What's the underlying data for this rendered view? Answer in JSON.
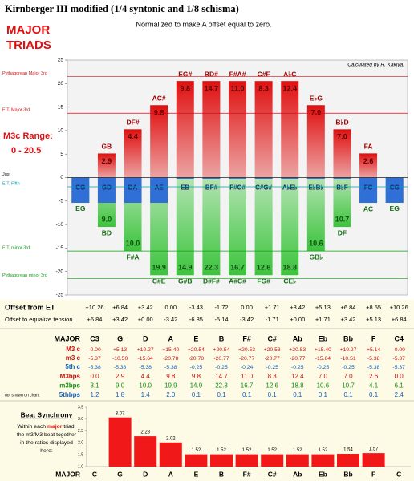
{
  "title": "Kirnberger III modified (1/4 syntonic and 1/8 schisma)",
  "heading_lines": [
    "MAJOR",
    "TRIADS"
  ],
  "note": "Normalized to make A offset equal to zero.",
  "range_label": "M3c Range:",
  "range_value": "0 - 20.5",
  "chart_data": [
    {
      "type": "bar",
      "annotation": "Calculated by R. Kakiya.",
      "category_label": "MAJOR",
      "categories": [
        "C3",
        "G",
        "D",
        "A",
        "E",
        "B",
        "F#",
        "C#",
        "Ab",
        "Eb",
        "Bb",
        "F",
        "C4"
      ],
      "series": [
        {
          "name": "M3 c",
          "color": "#e01010",
          "values": [
            0,
            5.13,
            10.27,
            15.4,
            20.54,
            20.54,
            20.53,
            20.53,
            20.53,
            15.4,
            10.27,
            5.14,
            0
          ],
          "value_labels": [
            "-0.00",
            "+5.13",
            "+10.27",
            "+15.40",
            "+20.54",
            "+20.54",
            "+20.53",
            "+20.53",
            "+20.53",
            "+15.40",
            "+10.27",
            "+5.14",
            "-0.00"
          ],
          "interval_labels": [
            null,
            "GB",
            "DF#",
            "AC#",
            "EG#",
            "BD#",
            "F#A#",
            "C#F",
            "A♭C",
            "E♭G",
            "B♭D",
            "FA",
            null
          ]
        },
        {
          "name": "m3 c",
          "color": "#3cc43c",
          "values": [
            -5.37,
            -10.5,
            -15.64,
            -20.78,
            -20.78,
            -20.77,
            -20.77,
            -20.77,
            -20.77,
            -15.64,
            -10.51,
            -5.38,
            -5.37
          ],
          "value_labels": [
            "-5.37",
            "-10.50",
            "-15.64",
            "-20.78",
            "-20.78",
            "-20.77",
            "-20.77",
            "-20.77",
            "-20.77",
            "-15.64",
            "-10.51",
            "-5.38",
            "-5.37"
          ],
          "interval_labels": [
            "EG",
            "BD",
            "F#A",
            "C#E",
            "G#B",
            "D#F#",
            "A#C#",
            "FG#",
            "CE♭",
            "GB♭",
            "DF",
            "AC",
            "EG"
          ]
        },
        {
          "name": "5th c",
          "color": "#2f6fd6",
          "values": [
            -5.38,
            -5.38,
            -5.38,
            -5.38,
            -0.25,
            -0.25,
            -0.24,
            -0.25,
            -0.25,
            -0.25,
            -0.25,
            -5.38,
            -5.37
          ],
          "value_labels": [
            "-5.38",
            "-5.38",
            "-5.38",
            "-5.38",
            "-0.25",
            "-0.25",
            "-0.24",
            "-0.25",
            "-0.25",
            "-0.25",
            "-0.25",
            "-5.38",
            "-5.37"
          ],
          "interval_labels": [
            "CG",
            "GD",
            "DA",
            "AE",
            "EB",
            "BF#",
            "F#C#",
            "C#G#",
            "A♭E♭",
            "E♭B♭",
            "B♭F",
            "FC",
            "CG"
          ]
        }
      ],
      "ylim": [
        -25,
        25
      ],
      "yticks": [
        -25,
        -20,
        -15,
        -10,
        -5,
        0,
        5,
        10,
        15,
        20,
        25
      ],
      "grid": false,
      "reference_lines": [
        {
          "label": "Pythagorean Major 3rd",
          "value": 21.51,
          "color": "#d01010"
        },
        {
          "label": "E.T. Major 3rd",
          "value": 13.69,
          "color": "#d01010"
        },
        {
          "label": "Just",
          "value": 0,
          "color": "#222222"
        },
        {
          "label": "E.T. Fifth",
          "value": -1.96,
          "color": "#00a0b0"
        },
        {
          "label": "E.T. minor 3rd",
          "value": -15.64,
          "color": "#10a010"
        },
        {
          "label": "Pythagorean minor 3rd",
          "value": -21.51,
          "color": "#10a010"
        }
      ]
    },
    {
      "type": "bar",
      "category_label": "MAJOR",
      "categories": [
        "C",
        "G",
        "D",
        "A",
        "E",
        "B",
        "F#",
        "C#",
        "Ab",
        "Eb",
        "Bb",
        "F",
        "C"
      ],
      "values": [
        null,
        3.07,
        2.28,
        2.02,
        1.52,
        1.52,
        1.52,
        1.52,
        1.52,
        1.52,
        1.54,
        1.57,
        null
      ],
      "color": "#f01818",
      "ylim": [
        1,
        3.5
      ],
      "yticks": [
        {
          "value": 1,
          "label": "1.0"
        },
        1.5,
        {
          "value": 2,
          "label": "2.0"
        },
        2.5,
        {
          "value": 3,
          "label": "3.0"
        },
        3.5
      ]
    }
  ],
  "table": {
    "offset_rows": [
      {
        "label": "Offset from ET",
        "cells": [
          "+10.26",
          "+6.84",
          "+3.42",
          "0.00",
          "-3.43",
          "-1.72",
          "0.00",
          "+1.71",
          "+3.42",
          "+5.13",
          "+6.84",
          "+8.55",
          "+10.26"
        ]
      },
      {
        "label": "Offset to equalize tension",
        "cells": [
          "+6.84",
          "+3.42",
          "+0.00",
          "-3.42",
          "-6.85",
          "-5.14",
          "-3.42",
          "-1.71",
          "+0.00",
          "+1.71",
          "+3.42",
          "+5.13",
          "+6.84"
        ]
      }
    ],
    "bps_rows": [
      {
        "label": "M3bps",
        "color": "#c01010",
        "cells": [
          "0.0",
          "2.9",
          "4.4",
          "9.8",
          "9.8",
          "14.7",
          "11.0",
          "8.3",
          "12.4",
          "7.0",
          "7.0",
          "2.6",
          "0.0"
        ]
      },
      {
        "label": "m3bps",
        "color": "#109010",
        "cells": [
          "3.1",
          "9.0",
          "10.0",
          "19.9",
          "14.9",
          "22.3",
          "16.7",
          "12.6",
          "18.8",
          "10.6",
          "10.7",
          "4.1",
          "6.1"
        ]
      },
      {
        "label": "5thbps",
        "color": "#1060c0",
        "cells": [
          "1.2",
          "1.8",
          "1.4",
          "2.0",
          "0.1",
          "0.1",
          "0.1",
          "0.1",
          "0.1",
          "0.1",
          "0.1",
          "0.1",
          "2.4"
        ]
      }
    ],
    "note": "not shown on chart:"
  },
  "beat_synchrony": {
    "title": "Beat Synchrony",
    "lines": [
      [
        "Within each ",
        "major",
        " triad,"
      ],
      [
        "the m3/M3 beat together"
      ],
      [
        "in the ratios displayed"
      ],
      [
        "here:"
      ]
    ]
  }
}
